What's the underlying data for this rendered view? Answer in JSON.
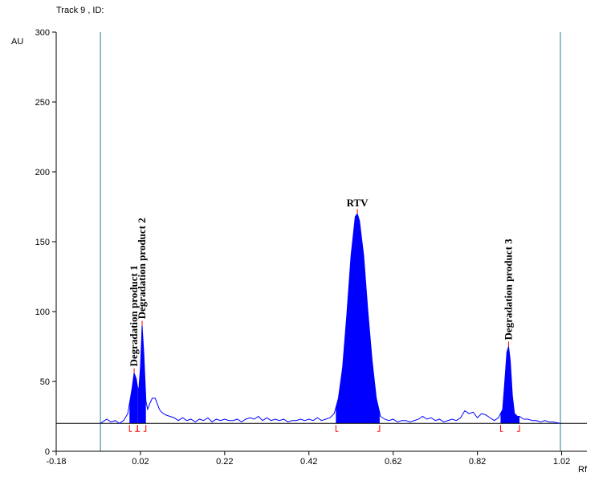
{
  "chart_data": {
    "type": "line",
    "title": "Track  9 , ID:",
    "xlabel": "Rf",
    "ylabel": "AU",
    "xlim": [
      -0.18,
      1.08
    ],
    "ylim": [
      0,
      300
    ],
    "xticks": [
      "-0.18",
      "0.02",
      "0.22",
      "0.42",
      "0.62",
      "0.82",
      "1.02"
    ],
    "yticks": [
      "0",
      "50",
      "100",
      "150",
      "200",
      "250",
      "300"
    ],
    "baseline": 20,
    "front_lines_x": [
      -0.075,
      1.017
    ],
    "colors": {
      "trace": "#0000ff",
      "fill": "#0000ff",
      "baseline": "#000000",
      "markers": "#ff0000",
      "front_lines": "#2a7a9a"
    },
    "series": [
      {
        "values": [
          [
            -0.075,
            20
          ],
          [
            -0.07,
            21
          ],
          [
            -0.06,
            23
          ],
          [
            -0.05,
            21
          ],
          [
            -0.04,
            22
          ],
          [
            -0.03,
            20
          ],
          [
            -0.02,
            22
          ],
          [
            -0.01,
            27
          ],
          [
            0.0,
            45
          ],
          [
            0.005,
            56
          ],
          [
            0.01,
            52
          ],
          [
            0.013,
            46
          ],
          [
            0.016,
            44
          ],
          [
            0.02,
            60
          ],
          [
            0.024,
            90
          ],
          [
            0.028,
            70
          ],
          [
            0.033,
            36
          ],
          [
            0.037,
            30
          ],
          [
            0.042,
            34
          ],
          [
            0.048,
            38
          ],
          [
            0.055,
            38
          ],
          [
            0.06,
            34
          ],
          [
            0.065,
            30
          ],
          [
            0.07,
            28
          ],
          [
            0.08,
            26
          ],
          [
            0.09,
            25
          ],
          [
            0.1,
            24
          ],
          [
            0.11,
            22
          ],
          [
            0.12,
            24
          ],
          [
            0.13,
            22
          ],
          [
            0.14,
            23
          ],
          [
            0.15,
            21
          ],
          [
            0.16,
            23
          ],
          [
            0.17,
            22
          ],
          [
            0.18,
            24
          ],
          [
            0.19,
            21
          ],
          [
            0.2,
            23
          ],
          [
            0.21,
            22
          ],
          [
            0.22,
            23
          ],
          [
            0.23,
            22
          ],
          [
            0.24,
            22
          ],
          [
            0.25,
            23
          ],
          [
            0.26,
            21
          ],
          [
            0.27,
            23
          ],
          [
            0.28,
            24
          ],
          [
            0.29,
            23
          ],
          [
            0.3,
            25
          ],
          [
            0.31,
            22
          ],
          [
            0.32,
            24
          ],
          [
            0.33,
            22
          ],
          [
            0.34,
            23
          ],
          [
            0.35,
            22
          ],
          [
            0.36,
            23
          ],
          [
            0.37,
            21
          ],
          [
            0.38,
            22
          ],
          [
            0.39,
            22
          ],
          [
            0.4,
            23
          ],
          [
            0.41,
            22
          ],
          [
            0.42,
            23
          ],
          [
            0.43,
            22
          ],
          [
            0.44,
            24
          ],
          [
            0.45,
            22
          ],
          [
            0.46,
            23
          ],
          [
            0.47,
            24
          ],
          [
            0.48,
            27
          ],
          [
            0.49,
            38
          ],
          [
            0.5,
            60
          ],
          [
            0.51,
            98
          ],
          [
            0.52,
            140
          ],
          [
            0.53,
            168
          ],
          [
            0.535,
            170
          ],
          [
            0.54,
            165
          ],
          [
            0.55,
            140
          ],
          [
            0.56,
            100
          ],
          [
            0.57,
            65
          ],
          [
            0.58,
            38
          ],
          [
            0.59,
            25
          ],
          [
            0.6,
            23
          ],
          [
            0.61,
            22
          ],
          [
            0.62,
            23
          ],
          [
            0.63,
            21
          ],
          [
            0.64,
            22
          ],
          [
            0.65,
            22
          ],
          [
            0.66,
            21
          ],
          [
            0.67,
            22
          ],
          [
            0.68,
            23
          ],
          [
            0.69,
            25
          ],
          [
            0.7,
            23
          ],
          [
            0.71,
            24
          ],
          [
            0.72,
            22
          ],
          [
            0.73,
            23
          ],
          [
            0.74,
            21
          ],
          [
            0.75,
            22
          ],
          [
            0.76,
            23
          ],
          [
            0.77,
            22
          ],
          [
            0.78,
            24
          ],
          [
            0.79,
            29
          ],
          [
            0.8,
            27
          ],
          [
            0.81,
            28
          ],
          [
            0.82,
            24
          ],
          [
            0.83,
            27
          ],
          [
            0.84,
            26
          ],
          [
            0.85,
            24
          ],
          [
            0.86,
            22
          ],
          [
            0.87,
            24
          ],
          [
            0.88,
            30
          ],
          [
            0.885,
            50
          ],
          [
            0.89,
            71
          ],
          [
            0.894,
            75
          ],
          [
            0.898,
            65
          ],
          [
            0.903,
            40
          ],
          [
            0.908,
            27
          ],
          [
            0.915,
            25
          ],
          [
            0.92,
            25
          ],
          [
            0.925,
            24
          ],
          [
            0.93,
            23
          ],
          [
            0.94,
            23
          ],
          [
            0.95,
            22
          ],
          [
            0.96,
            22
          ],
          [
            0.97,
            21
          ],
          [
            0.98,
            22
          ],
          [
            0.99,
            21
          ],
          [
            1.0,
            21
          ],
          [
            1.017,
            20
          ]
        ]
      }
    ],
    "peaks": [
      {
        "label": "Degradation product 1",
        "x": 0.005,
        "y": 56,
        "start": -0.006,
        "end": 0.013
      },
      {
        "label": "Degradation product 2",
        "x": 0.024,
        "y": 90,
        "start": 0.013,
        "end": 0.033
      },
      {
        "label": "RTV",
        "x": 0.535,
        "y": 170,
        "start": 0.484,
        "end": 0.588
      },
      {
        "label": "Degradation product 3",
        "x": 0.894,
        "y": 75,
        "start": 0.875,
        "end": 0.92
      }
    ]
  }
}
